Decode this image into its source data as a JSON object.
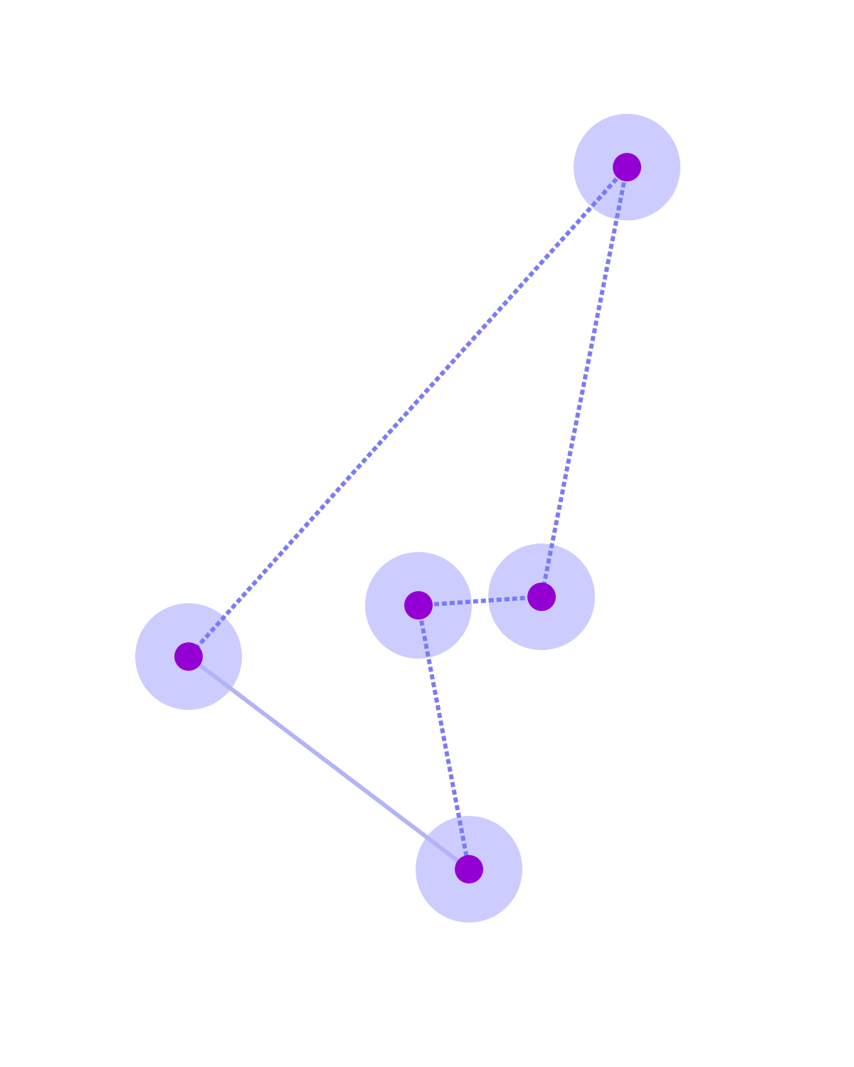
{
  "diagram": {
    "colors": {
      "background": "#ffffff",
      "halo": "#ccccff",
      "node": "#9400d3",
      "edge_dashed": "#7b7bf5",
      "edge_solid": "#b3b3f8"
    },
    "nodes": [
      {
        "id": "n1"
      },
      {
        "id": "n2"
      },
      {
        "id": "n3"
      },
      {
        "id": "n4"
      },
      {
        "id": "n5"
      }
    ],
    "edges": [
      {
        "from": "n1",
        "to": "n2",
        "style": "dashed"
      },
      {
        "from": "n1",
        "to": "n4",
        "style": "dashed"
      },
      {
        "from": "n2",
        "to": "n5",
        "style": "solid"
      },
      {
        "from": "n3",
        "to": "n4",
        "style": "dashed"
      },
      {
        "from": "n3",
        "to": "n5",
        "style": "dashed"
      }
    ]
  }
}
